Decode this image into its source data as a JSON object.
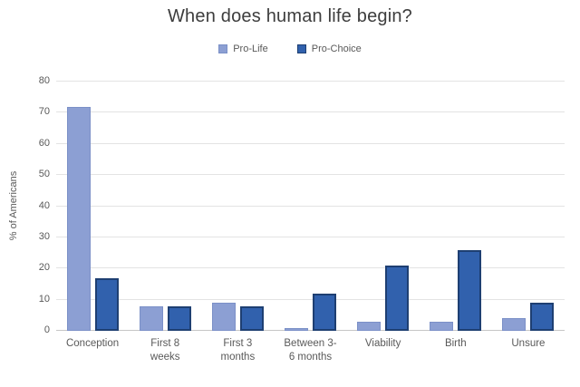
{
  "chart_data": {
    "type": "bar",
    "title": "When does human life begin?",
    "xlabel": "",
    "ylabel": "% of Americans",
    "ylim": [
      0,
      80
    ],
    "ytick_step": 10,
    "grid": true,
    "legend_position": "top-center",
    "categories": [
      "Conception",
      "First 8 weeks",
      "First 3 months",
      "Between 3-6 months",
      "Viability",
      "Birth",
      "Unsure"
    ],
    "category_label_lines": [
      [
        "Conception"
      ],
      [
        "First 8",
        "weeks"
      ],
      [
        "First 3",
        "months"
      ],
      [
        "Between 3-",
        "6 months"
      ],
      [
        "Viability"
      ],
      [
        "Birth"
      ],
      [
        "Unsure"
      ]
    ],
    "series": [
      {
        "name": "Pro-Life",
        "color": "#8c9fd3",
        "border_color": "#7b90c7",
        "values": [
          72,
          8,
          9,
          1,
          3,
          3,
          4
        ]
      },
      {
        "name": "Pro-Choice",
        "color": "#3161ad",
        "border_color": "#1e3f72",
        "values": [
          17,
          8,
          8,
          12,
          21,
          26,
          9
        ]
      }
    ],
    "colors": {
      "title_text": "#3d3d3d",
      "axis_text": "#595959",
      "gridline": "#e3e3e3",
      "axis_line": "#c6c6c6"
    }
  }
}
